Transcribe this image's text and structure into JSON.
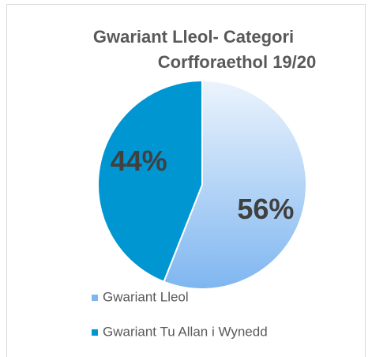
{
  "chart_data": {
    "type": "pie",
    "title": [
      "Gwariant Lleol- Categori",
      "Corfforaethol 19/20"
    ],
    "categories": [
      "Gwariant Lleol",
      "Gwariant Tu Allan i Wynedd"
    ],
    "values": [
      56,
      44
    ],
    "value_labels": [
      "56%",
      "44%"
    ],
    "colors": [
      "#7fb6f0",
      "#0096d2"
    ],
    "legend": "bottom"
  }
}
